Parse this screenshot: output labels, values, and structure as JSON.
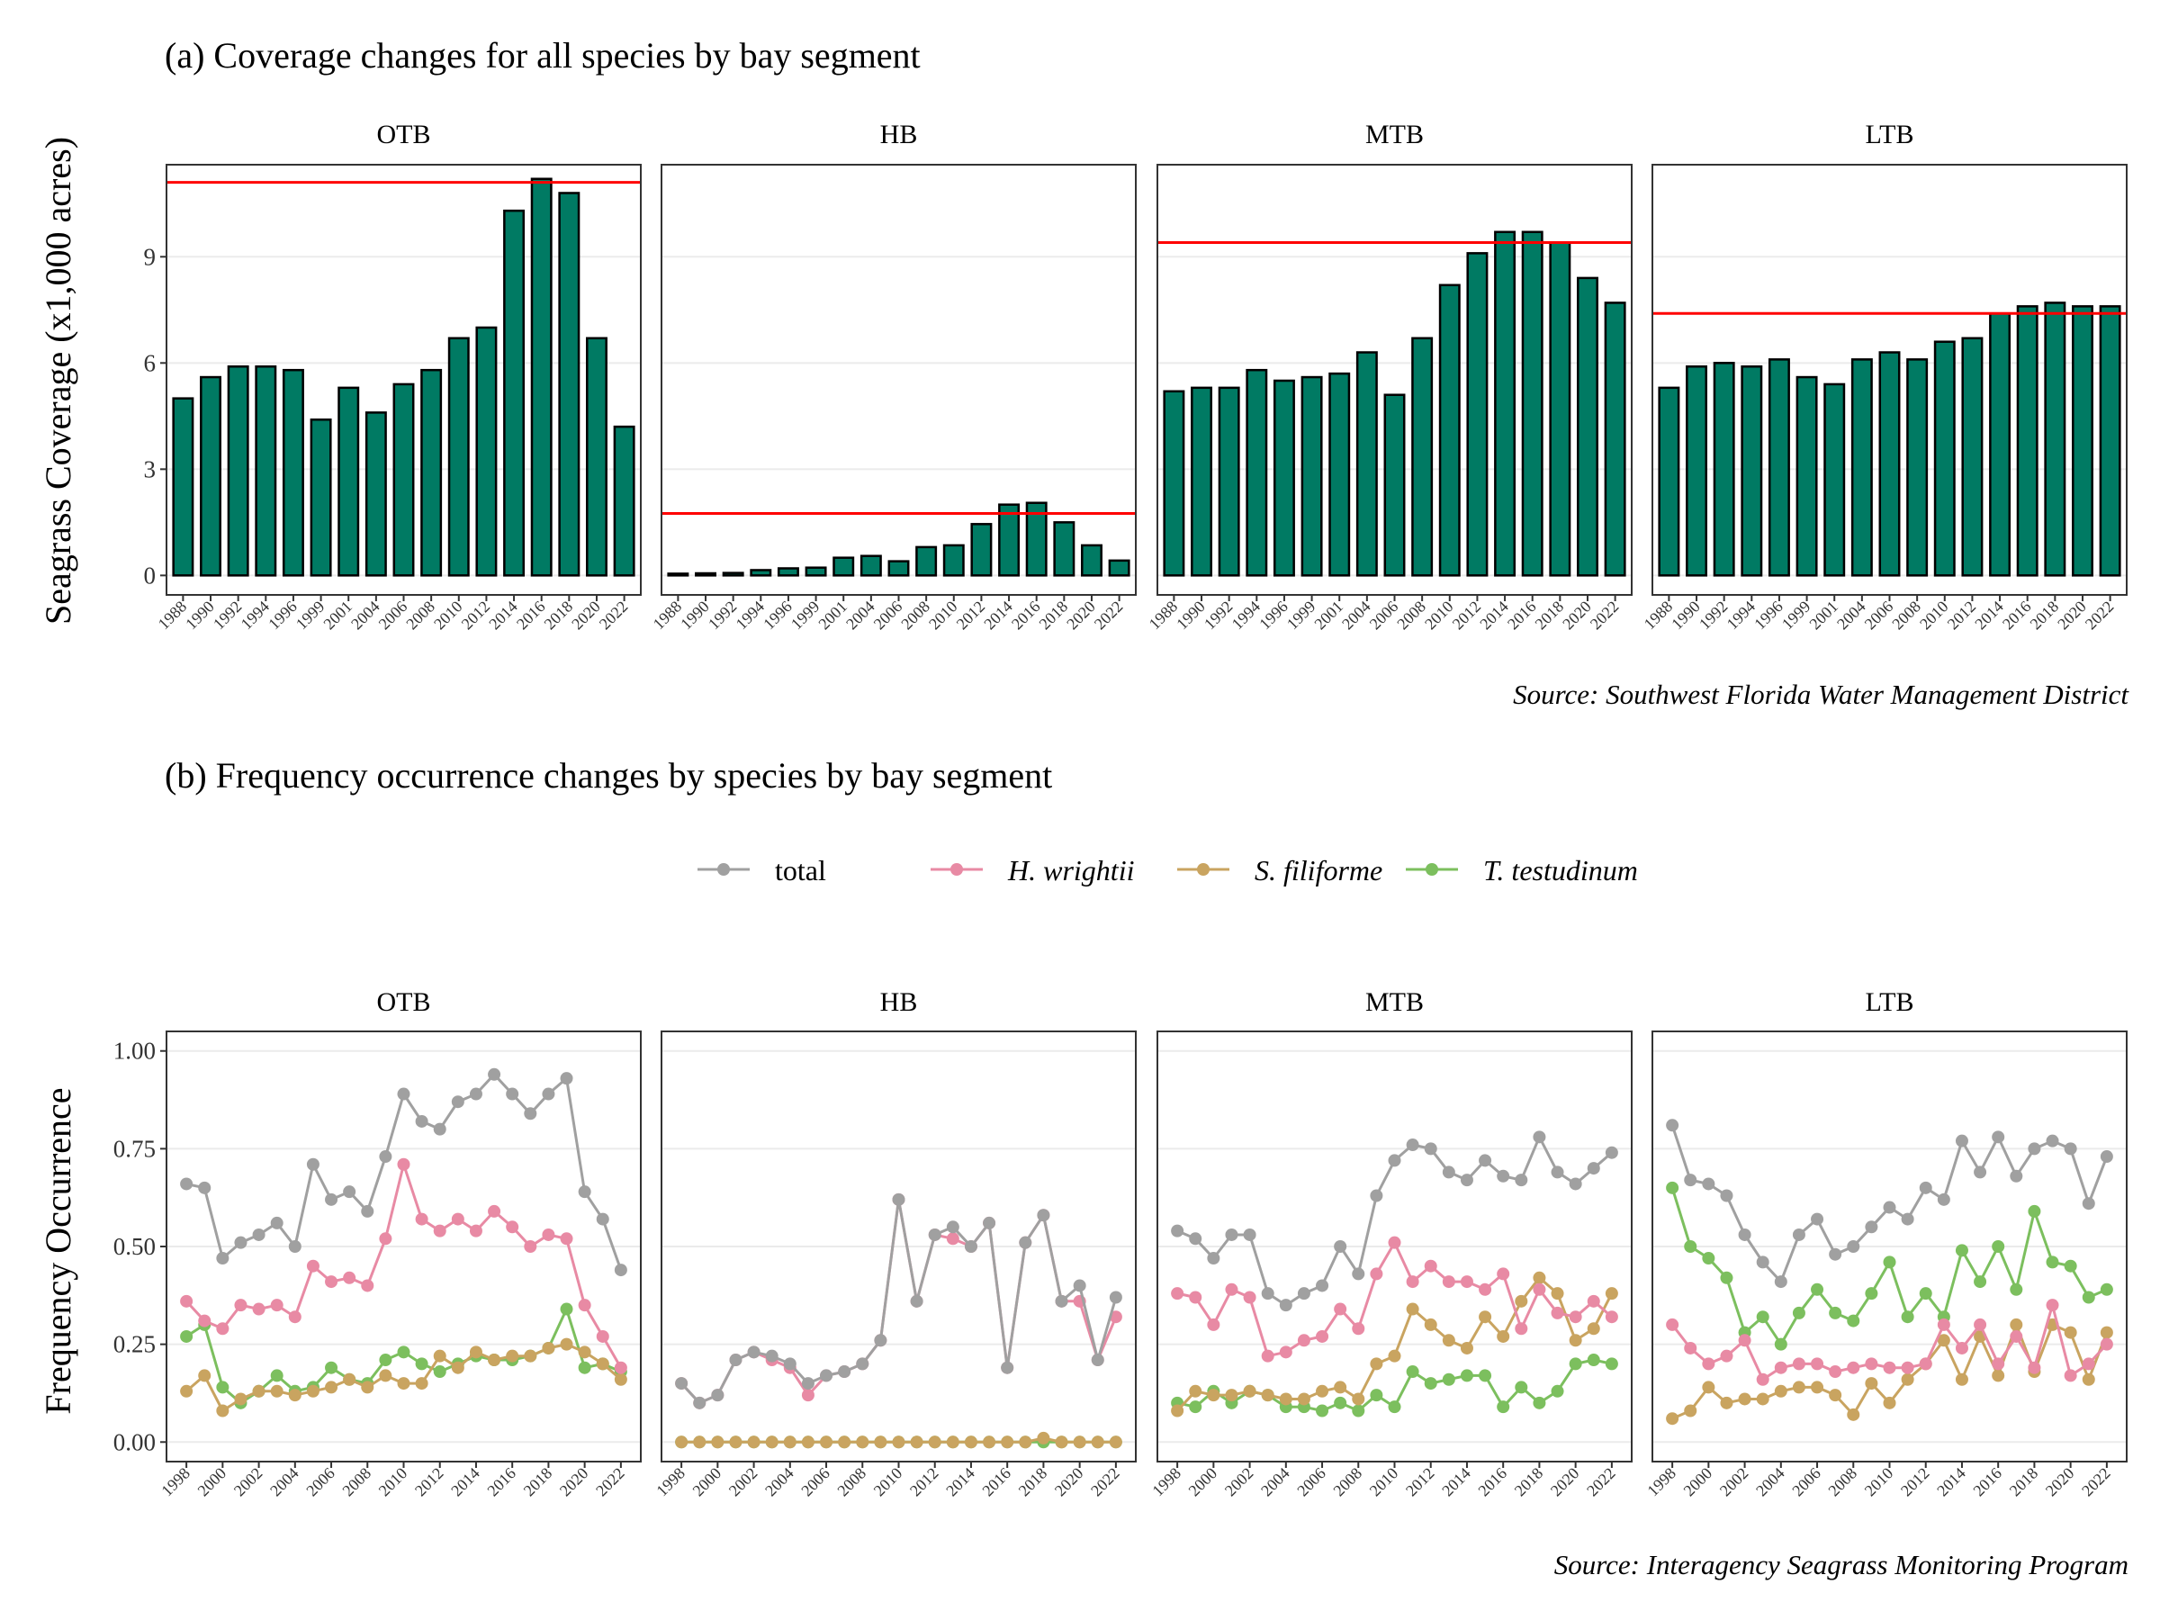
{
  "panel_a": {
    "title": "(a) Coverage changes for all species by bay segment",
    "ylabel": "Seagrass Coverage (x1,000 acres)",
    "source": "Source: Southwest Florida Water Management District"
  },
  "panel_b": {
    "title": "(b) Frequency occurrence changes by species by bay segment",
    "ylabel": "Frequency Occurrence",
    "source": "Source: Interagency Seagrass Monitoring Program"
  },
  "colors": {
    "bar_fill": "#007a63",
    "target_line": "#ff0000",
    "total": "#a0a0a0",
    "H. wrightii": "#e88aa4",
    "S. filiforme": "#c9a460",
    "T. testudinum": "#7cbf5e"
  },
  "chart_data": [
    {
      "type": "bar",
      "title": "(a) Coverage changes for all species by bay segment",
      "ylabel": "Seagrass Coverage (x1,000 acres)",
      "ylim": [
        -0.55,
        11.6
      ],
      "yticks": [
        0,
        3,
        6,
        9
      ],
      "grid": "horizontal",
      "categories": [
        "1988",
        "1990",
        "1992",
        "1994",
        "1996",
        "1999",
        "2001",
        "2004",
        "2006",
        "2008",
        "2010",
        "2012",
        "2014",
        "2016",
        "2018",
        "2020",
        "2022"
      ],
      "facets": [
        {
          "name": "OTB",
          "values": [
            5.0,
            5.6,
            5.9,
            5.9,
            5.8,
            4.4,
            5.3,
            4.6,
            5.4,
            5.8,
            6.7,
            7.0,
            10.3,
            11.2,
            10.8,
            6.7,
            4.2
          ],
          "target": 11.1
        },
        {
          "name": "HB",
          "values": [
            0.05,
            0.06,
            0.07,
            0.15,
            0.2,
            0.22,
            0.5,
            0.55,
            0.4,
            0.8,
            0.85,
            1.45,
            2.0,
            2.05,
            1.5,
            0.85,
            0.42
          ],
          "target": 1.75
        },
        {
          "name": "MTB",
          "values": [
            5.2,
            5.3,
            5.3,
            5.8,
            5.5,
            5.6,
            5.7,
            6.3,
            5.1,
            6.7,
            8.2,
            9.1,
            9.7,
            9.7,
            9.4,
            8.4,
            7.7
          ],
          "target": 9.4
        },
        {
          "name": "LTB",
          "values": [
            5.3,
            5.9,
            6.0,
            5.9,
            6.1,
            5.6,
            5.4,
            6.1,
            6.3,
            6.1,
            6.6,
            6.7,
            7.4,
            7.6,
            7.7,
            7.6,
            7.6
          ],
          "target": 7.4
        }
      ]
    },
    {
      "type": "line",
      "title": "(b) Frequency occurrence changes by species by bay segment",
      "ylabel": "Frequency Occurrence",
      "ylim": [
        -0.05,
        1.05
      ],
      "yticks": [
        "0.00",
        "0.25",
        "0.50",
        "0.75",
        "1.00"
      ],
      "grid": "horizontal",
      "legend": "top",
      "x": [
        1998,
        1999,
        2000,
        2001,
        2002,
        2003,
        2004,
        2005,
        2006,
        2007,
        2008,
        2009,
        2010,
        2011,
        2012,
        2013,
        2014,
        2015,
        2016,
        2017,
        2018,
        2019,
        2020,
        2021,
        2022
      ],
      "x_tick_labels": [
        "1998",
        "2000",
        "2002",
        "2004",
        "2006",
        "2008",
        "2010",
        "2012",
        "2014",
        "2016",
        "2018",
        "2020",
        "2022"
      ],
      "series_names": [
        "total",
        "H. wrightii",
        "S. filiforme",
        "T. testudinum"
      ],
      "facets": [
        {
          "name": "OTB",
          "series": [
            {
              "name": "total",
              "values": [
                0.66,
                0.65,
                0.47,
                0.51,
                0.53,
                0.56,
                0.5,
                0.71,
                0.62,
                0.64,
                0.59,
                0.73,
                0.89,
                0.82,
                0.8,
                0.87,
                0.89,
                0.94,
                0.89,
                0.84,
                0.89,
                0.93,
                0.64,
                0.57,
                0.44
              ]
            },
            {
              "name": "H. wrightii",
              "values": [
                0.36,
                0.31,
                0.29,
                0.35,
                0.34,
                0.35,
                0.32,
                0.45,
                0.41,
                0.42,
                0.4,
                0.52,
                0.71,
                0.57,
                0.54,
                0.57,
                0.54,
                0.59,
                0.55,
                0.5,
                0.53,
                0.52,
                0.35,
                0.27,
                0.19
              ]
            },
            {
              "name": "S. filiforme",
              "values": [
                0.13,
                0.17,
                0.08,
                0.11,
                0.13,
                0.13,
                0.12,
                0.13,
                0.14,
                0.16,
                0.14,
                0.17,
                0.15,
                0.15,
                0.22,
                0.19,
                0.23,
                0.21,
                0.22,
                0.22,
                0.24,
                0.25,
                0.23,
                0.2,
                0.16
              ]
            },
            {
              "name": "T. testudinum",
              "values": [
                0.27,
                0.3,
                0.14,
                0.1,
                0.13,
                0.17,
                0.13,
                0.14,
                0.19,
                0.16,
                0.15,
                0.21,
                0.23,
                0.2,
                0.18,
                0.2,
                0.22,
                0.21,
                0.21,
                0.22,
                0.24,
                0.34,
                0.19,
                0.2,
                0.18
              ]
            }
          ]
        },
        {
          "name": "HB",
          "series": [
            {
              "name": "total",
              "values": [
                0.15,
                0.1,
                0.12,
                0.21,
                0.23,
                0.22,
                0.2,
                0.15,
                0.17,
                0.18,
                0.2,
                0.26,
                0.62,
                0.36,
                0.53,
                0.55,
                0.5,
                0.56,
                0.19,
                0.51,
                0.58,
                0.36,
                0.4,
                0.21,
                0.37
              ]
            },
            {
              "name": "H. wrightii",
              "values": [
                0.15,
                0.1,
                0.12,
                0.21,
                0.23,
                0.21,
                0.19,
                0.12,
                0.17,
                0.18,
                0.2,
                0.26,
                0.62,
                0.36,
                0.53,
                0.52,
                0.5,
                0.56,
                0.19,
                0.51,
                0.58,
                0.36,
                0.36,
                0.21,
                0.32
              ]
            },
            {
              "name": "S. filiforme",
              "values": [
                0,
                0,
                0,
                0,
                0,
                0,
                0,
                0,
                0,
                0,
                0,
                0,
                0,
                0,
                0,
                0,
                0,
                0,
                0,
                0,
                0.01,
                0,
                0,
                0,
                0
              ]
            },
            {
              "name": "T. testudinum",
              "values": [
                0,
                0,
                0,
                0,
                0,
                0,
                0,
                0,
                0,
                0,
                0,
                0,
                0,
                0,
                0,
                0,
                0,
                0,
                0,
                0,
                0,
                0,
                0,
                0,
                0
              ]
            }
          ]
        },
        {
          "name": "MTB",
          "series": [
            {
              "name": "total",
              "values": [
                0.54,
                0.52,
                0.47,
                0.53,
                0.53,
                0.38,
                0.35,
                0.38,
                0.4,
                0.5,
                0.43,
                0.63,
                0.72,
                0.76,
                0.75,
                0.69,
                0.67,
                0.72,
                0.68,
                0.67,
                0.78,
                0.69,
                0.66,
                0.7,
                0.74
              ]
            },
            {
              "name": "H. wrightii",
              "values": [
                0.38,
                0.37,
                0.3,
                0.39,
                0.37,
                0.22,
                0.23,
                0.26,
                0.27,
                0.34,
                0.29,
                0.43,
                0.51,
                0.41,
                0.45,
                0.41,
                0.41,
                0.39,
                0.43,
                0.29,
                0.39,
                0.33,
                0.32,
                0.36,
                0.32
              ]
            },
            {
              "name": "S. filiforme",
              "values": [
                0.08,
                0.13,
                0.12,
                0.12,
                0.13,
                0.12,
                0.11,
                0.11,
                0.13,
                0.14,
                0.11,
                0.2,
                0.22,
                0.34,
                0.3,
                0.26,
                0.24,
                0.32,
                0.27,
                0.36,
                0.42,
                0.38,
                0.26,
                0.29,
                0.38
              ]
            },
            {
              "name": "T. testudinum",
              "values": [
                0.1,
                0.09,
                0.13,
                0.1,
                0.13,
                0.12,
                0.09,
                0.09,
                0.08,
                0.1,
                0.08,
                0.12,
                0.09,
                0.18,
                0.15,
                0.16,
                0.17,
                0.17,
                0.09,
                0.14,
                0.1,
                0.13,
                0.2,
                0.21,
                0.2
              ]
            }
          ]
        },
        {
          "name": "LTB",
          "series": [
            {
              "name": "total",
              "values": [
                0.81,
                0.67,
                0.66,
                0.63,
                0.53,
                0.46,
                0.41,
                0.53,
                0.57,
                0.48,
                0.5,
                0.55,
                0.6,
                0.57,
                0.65,
                0.62,
                0.77,
                0.69,
                0.78,
                0.68,
                0.75,
                0.77,
                0.75,
                0.61,
                0.73
              ]
            },
            {
              "name": "H. wrightii",
              "values": [
                0.3,
                0.24,
                0.2,
                0.22,
                0.26,
                0.16,
                0.19,
                0.2,
                0.2,
                0.18,
                0.19,
                0.2,
                0.19,
                0.19,
                0.2,
                0.3,
                0.24,
                0.3,
                0.2,
                0.27,
                0.19,
                0.35,
                0.17,
                0.2,
                0.25
              ]
            },
            {
              "name": "S. filiforme",
              "values": [
                0.06,
                0.08,
                0.14,
                0.1,
                0.11,
                0.11,
                0.13,
                0.14,
                0.14,
                0.12,
                0.07,
                0.15,
                0.1,
                0.16,
                0.2,
                0.26,
                0.16,
                0.27,
                0.17,
                0.3,
                0.18,
                0.3,
                0.28,
                0.16,
                0.28
              ]
            },
            {
              "name": "T. testudinum",
              "values": [
                0.65,
                0.5,
                0.47,
                0.42,
                0.28,
                0.32,
                0.25,
                0.33,
                0.39,
                0.33,
                0.31,
                0.38,
                0.46,
                0.32,
                0.38,
                0.32,
                0.49,
                0.41,
                0.5,
                0.39,
                0.59,
                0.46,
                0.45,
                0.37,
                0.39
              ]
            }
          ]
        }
      ]
    }
  ]
}
